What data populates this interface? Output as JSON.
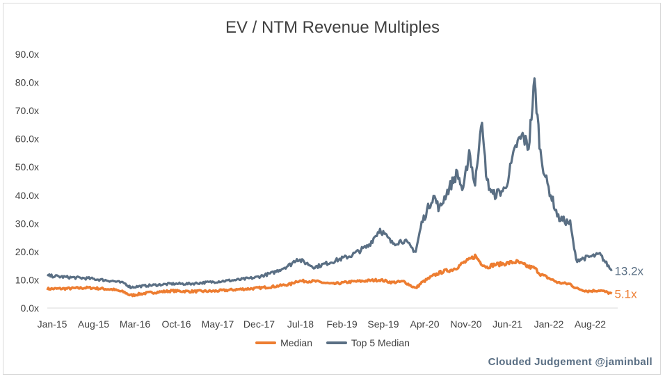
{
  "chart_data": {
    "type": "line",
    "title": "EV / NTM Revenue Multiples",
    "xlabel": "",
    "ylabel": "",
    "x_tick_labels": [
      "Jan-15",
      "Aug-15",
      "Mar-16",
      "Oct-16",
      "May-17",
      "Dec-17",
      "Jul-18",
      "Feb-19",
      "Sep-19",
      "Apr-20",
      "Nov-20",
      "Jun-21",
      "Jan-22",
      "Aug-22"
    ],
    "y_tick_labels": [
      "0.0x",
      "10.0x",
      "20.0x",
      "30.0x",
      "40.0x",
      "50.0x",
      "60.0x",
      "70.0x",
      "80.0x",
      "90.0x"
    ],
    "ylim": [
      0,
      90
    ],
    "xlim": [
      "2015-01",
      "2023-01"
    ],
    "grid": false,
    "legend_position": "bottom",
    "x": [
      "2015-01",
      "2015-04",
      "2015-08",
      "2015-12",
      "2016-02",
      "2016-03",
      "2016-06",
      "2016-10",
      "2017-01",
      "2017-05",
      "2017-09",
      "2017-12",
      "2018-03",
      "2018-06",
      "2018-07",
      "2018-10",
      "2019-01",
      "2019-04",
      "2019-07",
      "2019-09",
      "2019-11",
      "2020-01",
      "2020-03",
      "2020-04",
      "2020-06",
      "2020-07",
      "2020-08",
      "2020-09",
      "2020-10",
      "2020-11",
      "2020-12",
      "2021-01",
      "2021-02",
      "2021-03",
      "2021-04",
      "2021-06",
      "2021-08",
      "2021-09",
      "2021-10",
      "2021-11",
      "2021-12",
      "2022-01",
      "2022-03",
      "2022-05",
      "2022-06",
      "2022-08",
      "2022-10",
      "2022-12"
    ],
    "series": [
      {
        "name": "Median",
        "color": "#ed7d31",
        "values": [
          6.8,
          6.9,
          7.2,
          6.6,
          5.6,
          4.5,
          5.4,
          6.1,
          5.9,
          6.0,
          6.6,
          7.0,
          7.6,
          8.5,
          9.6,
          9.5,
          8.5,
          9.3,
          9.7,
          10.0,
          9.1,
          9.4,
          7.0,
          9.0,
          11.5,
          12.5,
          13.2,
          13.5,
          14.5,
          16.0,
          17.0,
          18.5,
          16.0,
          14.5,
          15.3,
          15.8,
          16.4,
          15.5,
          14.6,
          14.2,
          12.0,
          11.0,
          9.0,
          8.5,
          7.0,
          6.0,
          6.3,
          5.1
        ]
      },
      {
        "name": "Top 5 Median",
        "color": "#5a6f84",
        "values": [
          11.5,
          11.0,
          10.5,
          9.6,
          8.8,
          7.4,
          8.0,
          8.6,
          8.6,
          9.3,
          10.0,
          10.8,
          12.5,
          15.5,
          17.5,
          14.5,
          16.5,
          18.5,
          22.0,
          28.0,
          23.0,
          24.0,
          20.0,
          30.0,
          40.0,
          35.0,
          40.0,
          44.0,
          48.0,
          41.0,
          56.0,
          43.0,
          67.0,
          45.0,
          40.0,
          42.0,
          58.0,
          61.0,
          57.0,
          80.0,
          55.0,
          45.0,
          32.0,
          30.0,
          17.0,
          18.0,
          19.0,
          13.2
        ]
      }
    ],
    "end_labels": [
      {
        "series": "Top 5 Median",
        "text": "13.2x"
      },
      {
        "series": "Median",
        "text": "5.1x"
      }
    ]
  },
  "credit": "Clouded Judgement @jaminball"
}
